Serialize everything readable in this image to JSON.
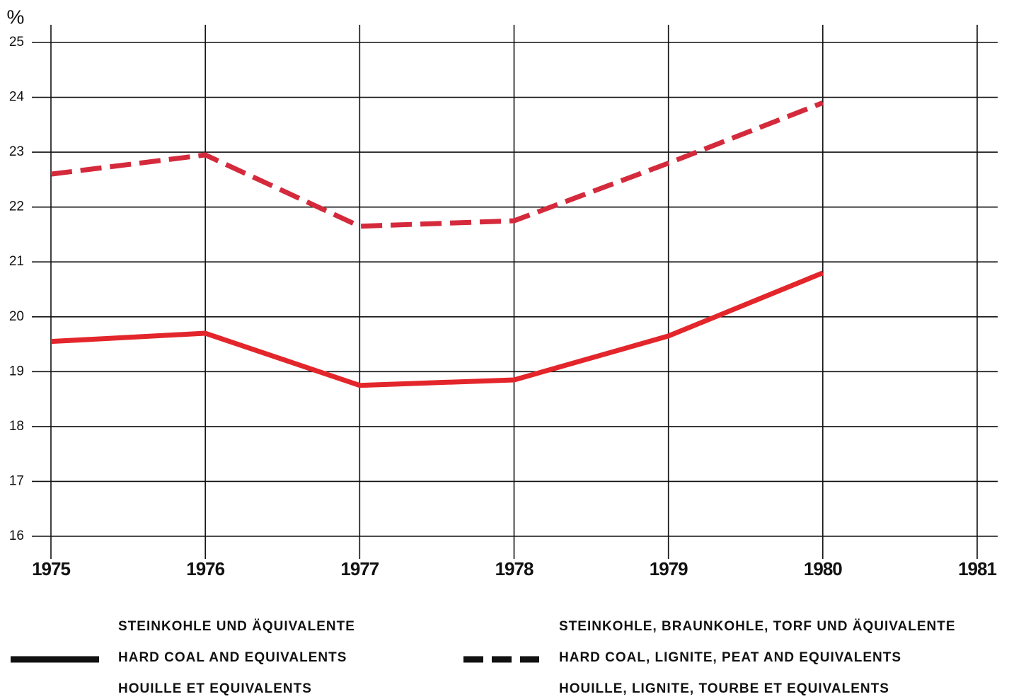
{
  "chart_data": {
    "type": "line",
    "y_label": "%",
    "x": [
      1975,
      1976,
      1977,
      1978,
      1979,
      1980
    ],
    "xlim": [
      1975,
      1981
    ],
    "xticks": [
      1975,
      1976,
      1977,
      1978,
      1979,
      1980,
      1981
    ],
    "ylim": [
      16,
      25
    ],
    "yticks": [
      16,
      17,
      18,
      19,
      20,
      21,
      22,
      23,
      24,
      25
    ],
    "grid": true,
    "series": [
      {
        "name": "HARD COAL AND EQUIVALENTS",
        "name_de": "STEINKOHLE UND ÄQUIVALENTE",
        "name_fr": "HOUILLE ET EQUIVALENTS",
        "color": "#e3262b",
        "dashed": false,
        "values": [
          19.55,
          19.7,
          18.75,
          18.85,
          19.65,
          20.8
        ]
      },
      {
        "name": "HARD COAL, LIGNITE, PEAT AND EQUIVALENTS",
        "name_de": "STEINKOHLE, BRAUNKOHLE, TORF UND ÄQUIVALENTE",
        "name_fr": "HOUILLE, LIGNITE, TOURBE ET EQUIVALENTS",
        "color": "#d42a3c",
        "dashed": true,
        "values": [
          22.6,
          22.95,
          21.65,
          21.75,
          22.8,
          23.9
        ]
      }
    ]
  }
}
